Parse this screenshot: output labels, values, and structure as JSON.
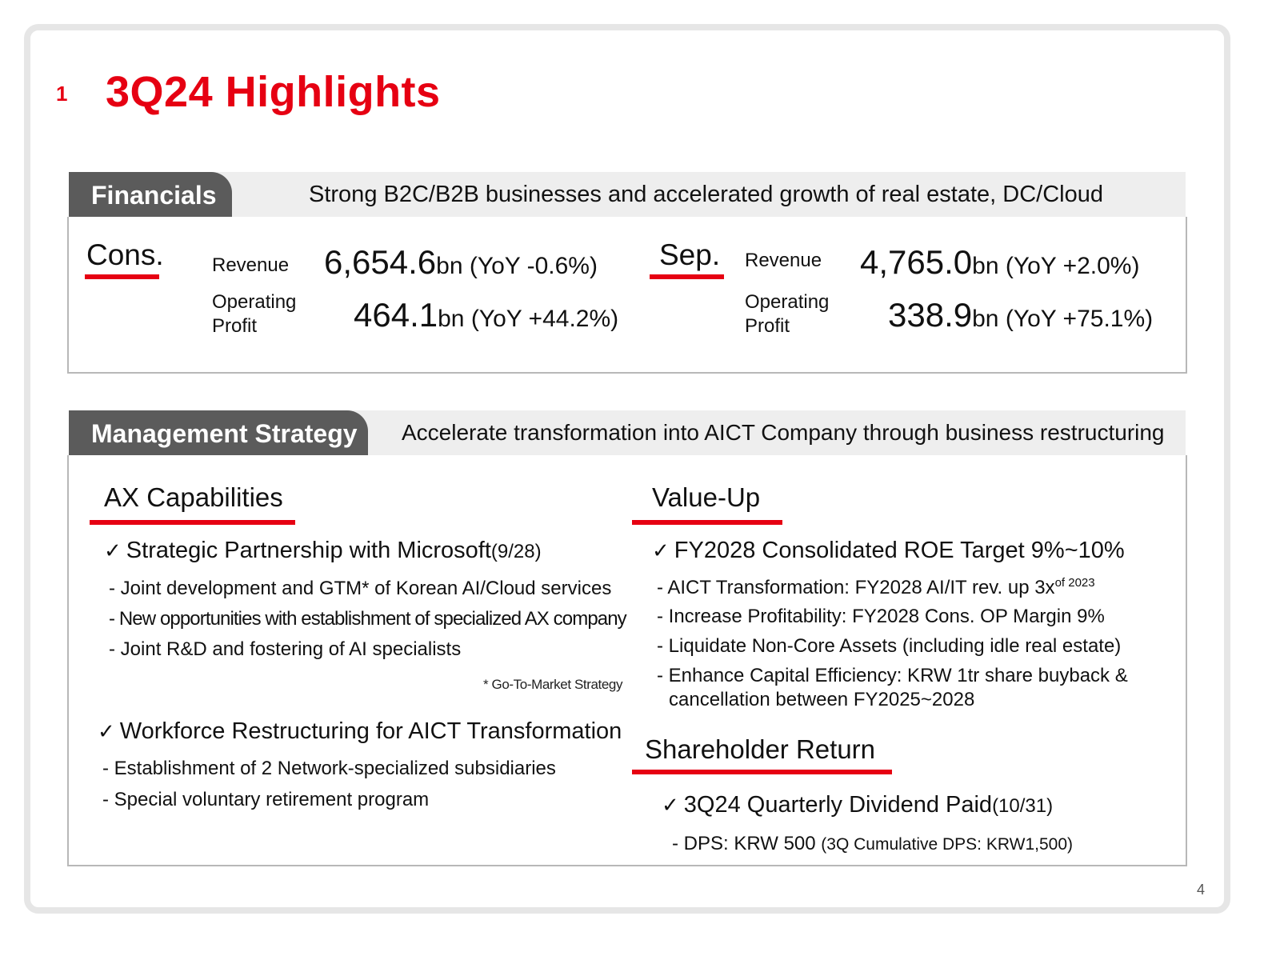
{
  "slide": {
    "section_number": "1",
    "title": "3Q24 Highlights",
    "page_number": "4",
    "accent_color": "#e60012",
    "tab_color": "#5b5b5b"
  },
  "financials": {
    "tab_label": "Financials",
    "headline": "Strong B2C/B2B businesses and accelerated growth of real estate, DC/Cloud",
    "cons": {
      "label": "Cons.",
      "revenue_label": "Revenue",
      "revenue_value": "6,654.6",
      "revenue_unit": "bn",
      "revenue_yoy": " (YoY -0.6%)",
      "op_label_line1": "Operating",
      "op_label_line2": "Profit",
      "op_value": "464.1",
      "op_unit": "bn",
      "op_yoy": " (YoY +44.2%)"
    },
    "sep": {
      "label": "Sep.",
      "revenue_label": "Revenue",
      "revenue_value": "4,765.0",
      "revenue_unit": "bn",
      "revenue_yoy": " (YoY +2.0%)",
      "op_label_line1": "Operating",
      "op_label_line2": "Profit",
      "op_value": "338.9",
      "op_unit": "bn",
      "op_yoy": " (YoY +75.1%)"
    }
  },
  "strategy": {
    "tab_label": "Management Strategy",
    "headline": "Accelerate transformation into AICT Company through business restructuring",
    "ax": {
      "heading": "AX Capabilities",
      "item1": {
        "title": "Strategic Partnership with Microsoft",
        "date": "(9/28)",
        "bullets": [
          "- Joint development and GTM* of Korean AI/Cloud services",
          "- New opportunities with establishment of specialized AX company",
          "- Joint R&D and fostering of AI specialists"
        ],
        "footnote": "* Go-To-Market Strategy"
      },
      "item2": {
        "title": "Workforce Restructuring for AICT Transformation",
        "bullets": [
          "- Establishment of 2 Network-specialized subsidiaries",
          "- Special voluntary retirement program"
        ]
      }
    },
    "value_up": {
      "heading": "Value-Up",
      "item_title": "FY2028 Consolidated ROE Target 9%~10%",
      "bullet1": "- AICT Transformation: FY2028 AI/IT rev. up 3x",
      "bullet1_sup": "of 2023",
      "bullet2": "- Increase Profitability: FY2028 Cons. OP Margin 9%",
      "bullet3": "- Liquidate Non-Core Assets (including idle real estate)",
      "bullet4_line1": "- Enhance Capital Efficiency: KRW 1tr share buyback &",
      "bullet4_line2": "cancellation between FY2025~2028"
    },
    "shareholder": {
      "heading": "Shareholder Return",
      "item_title": "3Q24 Quarterly Dividend Paid",
      "item_date": "(10/31)",
      "bullet_main": "- DPS: KRW 500 ",
      "bullet_detail": "(3Q Cumulative DPS: KRW1,500)"
    },
    "check_icon": "check-mark-icon"
  }
}
